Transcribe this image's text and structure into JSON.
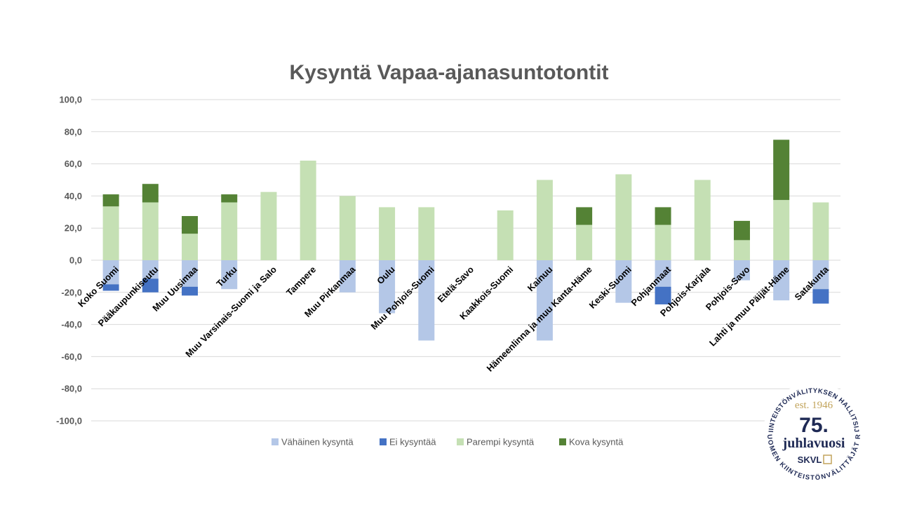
{
  "chart_data": {
    "type": "bar",
    "stacked": true,
    "title": "Kysyntä Vapaa-ajanasuntotontit",
    "categories": [
      "Koko Suomi",
      "Pääkaupunkiseutu",
      "Muu Uusimaa",
      "Turku",
      "Muu Varsinais-Suomi ja Salo",
      "Tampere",
      "Muu Pirkanmaa",
      "Oulu",
      "Muu Pohjois-Suomi",
      "Etelä-Savo",
      "Kaakkois-Suomi",
      "Kainuu",
      "Hämeenlinna ja muu Kanta-Häme",
      "Keski-Suomi",
      "Pohjanmaat",
      "Pohjois-Karjala",
      "Pohjois-Savo",
      "Lahti ja muu Päijät-Häme",
      "Satakunta"
    ],
    "series": [
      {
        "name": "Vähäinen kysyntä",
        "color": "#b4c7e7",
        "values": [
          -15,
          -11.5,
          -16.5,
          -18,
          0,
          0,
          -20,
          -33,
          -50,
          0,
          0,
          -50,
          0,
          -26.5,
          -16.5,
          0,
          -12.5,
          -25,
          -18
        ]
      },
      {
        "name": "Ei kysyntää",
        "color": "#4472c4",
        "values": [
          -4,
          -8.5,
          -5.5,
          0,
          0,
          0,
          0,
          0,
          0,
          0,
          0,
          0,
          0,
          0,
          -11,
          0,
          0,
          0,
          -9
        ]
      },
      {
        "name": "Parempi kysyntä",
        "color": "#c5e0b4",
        "values": [
          33.5,
          36,
          16.5,
          36,
          42.5,
          62,
          40,
          33,
          33,
          0,
          31,
          50,
          22,
          53.5,
          22,
          50,
          12.5,
          37.5,
          36
        ]
      },
      {
        "name": "Kova kysyntä",
        "color": "#548235",
        "values": [
          7.5,
          11.5,
          11,
          5,
          0,
          0,
          0,
          0,
          0,
          0,
          0,
          0,
          11,
          0,
          11,
          0,
          12,
          37.5,
          0
        ]
      }
    ],
    "ylim": [
      -100,
      100
    ],
    "yticks": [
      100,
      80,
      60,
      40,
      20,
      0,
      -20,
      -40,
      -60,
      -80,
      -100
    ],
    "ytick_labels": [
      "100,0",
      "80,0",
      "60,0",
      "40,0",
      "20,0",
      "0,0",
      "-20,0",
      "-40,0",
      "-60,0",
      "-80,0",
      "-100,0"
    ],
    "grid": true,
    "legend_position": "bottom"
  },
  "seal": {
    "ring_top": "KIINTEISTÖNVÄLITYKSEN HALLITSIJA",
    "ring_bottom": "SUOMEN KIINTEISTÖNVÄLITTÄJÄT RY",
    "est": "est. 1946",
    "number": "75.",
    "line": "juhlavuosi",
    "brand": "SKVL"
  }
}
